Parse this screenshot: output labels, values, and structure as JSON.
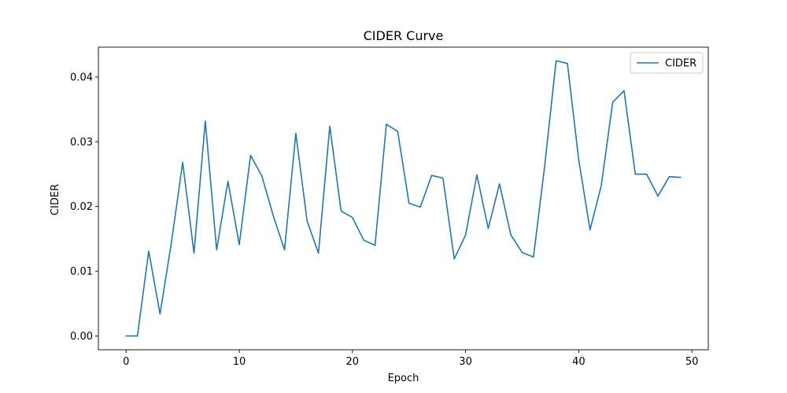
{
  "chart_data": {
    "type": "line",
    "title": "CIDER Curve",
    "xlabel": "Epoch",
    "ylabel": "CIDER",
    "xlim": [
      -2.45,
      51.45
    ],
    "ylim": [
      -0.00213,
      0.04461
    ],
    "xticks": [
      0,
      10,
      20,
      30,
      40,
      50
    ],
    "xtick_labels": [
      "0",
      "10",
      "20",
      "30",
      "40",
      "50"
    ],
    "yticks": [
      0.0,
      0.01,
      0.02,
      0.03,
      0.04
    ],
    "ytick_labels": [
      "0.00",
      "0.01",
      "0.02",
      "0.03",
      "0.04"
    ],
    "grid": false,
    "legend": "top-right",
    "series": [
      {
        "name": "CIDER",
        "color": "#1f77b4",
        "x": [
          0,
          1,
          2,
          3,
          4,
          5,
          6,
          7,
          8,
          9,
          10,
          11,
          12,
          13,
          14,
          15,
          16,
          17,
          18,
          19,
          20,
          21,
          22,
          23,
          24,
          25,
          26,
          27,
          28,
          29,
          30,
          31,
          32,
          33,
          34,
          35,
          36,
          37,
          38,
          39,
          40,
          41,
          42,
          43,
          44,
          45,
          46,
          47,
          48,
          49
        ],
        "values": [
          0.0,
          0.0,
          0.0131,
          0.0034,
          0.0144,
          0.0268,
          0.0128,
          0.0332,
          0.0133,
          0.0239,
          0.0141,
          0.0279,
          0.0247,
          0.0186,
          0.0133,
          0.0313,
          0.0177,
          0.0128,
          0.0324,
          0.0193,
          0.0183,
          0.0148,
          0.014,
          0.0327,
          0.0316,
          0.0205,
          0.0199,
          0.0248,
          0.0244,
          0.0119,
          0.0156,
          0.0249,
          0.0166,
          0.0235,
          0.0156,
          0.0129,
          0.0122,
          0.0264,
          0.0425,
          0.0421,
          0.0272,
          0.0164,
          0.0233,
          0.0361,
          0.0379,
          0.025,
          0.025,
          0.0216,
          0.0246,
          0.0245
        ]
      }
    ]
  }
}
